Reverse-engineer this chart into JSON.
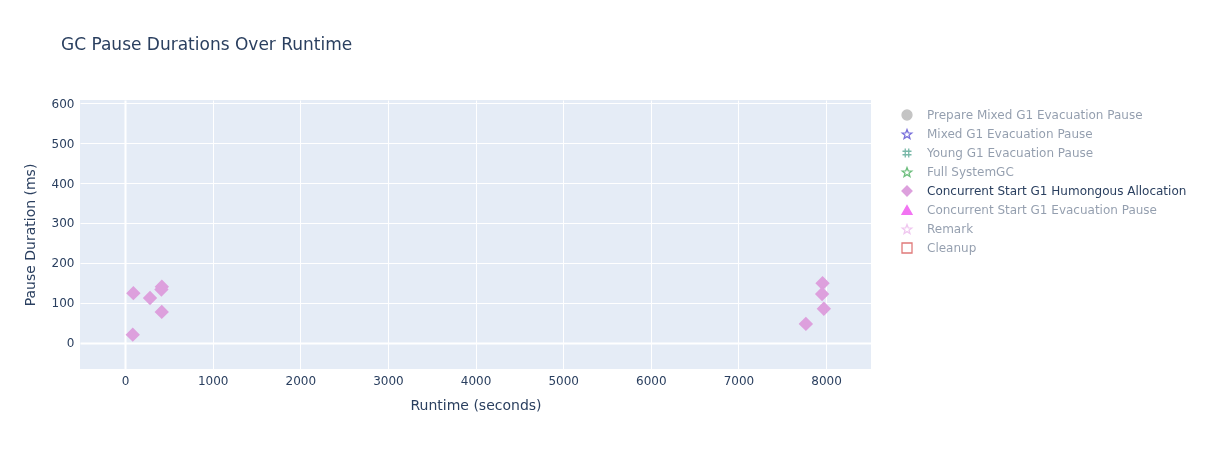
{
  "chart_data": {
    "type": "scatter",
    "title": "GC Pause Durations Over Runtime",
    "xlabel": "Runtime (seconds)",
    "ylabel": "Pause Duration (ms)",
    "xlim": [
      -514,
      8513
    ],
    "ylim": [
      -66,
      608
    ],
    "xticks": [
      0,
      1000,
      2000,
      3000,
      4000,
      5000,
      6000,
      7000,
      8000
    ],
    "yticks": [
      0,
      100,
      200,
      300,
      400,
      500,
      600
    ],
    "grid": true,
    "legend": "right",
    "series": [
      {
        "name": "Prepare Mixed G1 Evacuation Pause",
        "color": "#c4c4c4",
        "marker": "circle"
      },
      {
        "name": "Mixed G1 Evacuation Pause",
        "color": "#7b72dc",
        "marker": "star-open"
      },
      {
        "name": "Young G1 Evacuation Pause",
        "color": "#79b8a8",
        "marker": "hash-open"
      },
      {
        "name": "Full SystemGC",
        "color": "#6fbf7f",
        "marker": "star-open"
      },
      {
        "name": "Concurrent Start G1 Humongous Allocation",
        "color": "#dda0dd",
        "marker": "diamond",
        "x": [
          88,
          95,
          285,
          415,
          420,
          419,
          7960,
          7955,
          7975,
          7770
        ],
        "values": [
          20,
          124,
          112,
          133,
          140,
          77,
          149,
          122,
          85,
          47
        ]
      },
      {
        "name": "Concurrent Start G1 Evacuation Pause",
        "color": "#f274f2",
        "marker": "triangle"
      },
      {
        "name": "Remark",
        "color": "#f0c8f0",
        "marker": "star-open"
      },
      {
        "name": "Cleanup",
        "color": "#e07a7a",
        "marker": "square-open"
      }
    ]
  }
}
